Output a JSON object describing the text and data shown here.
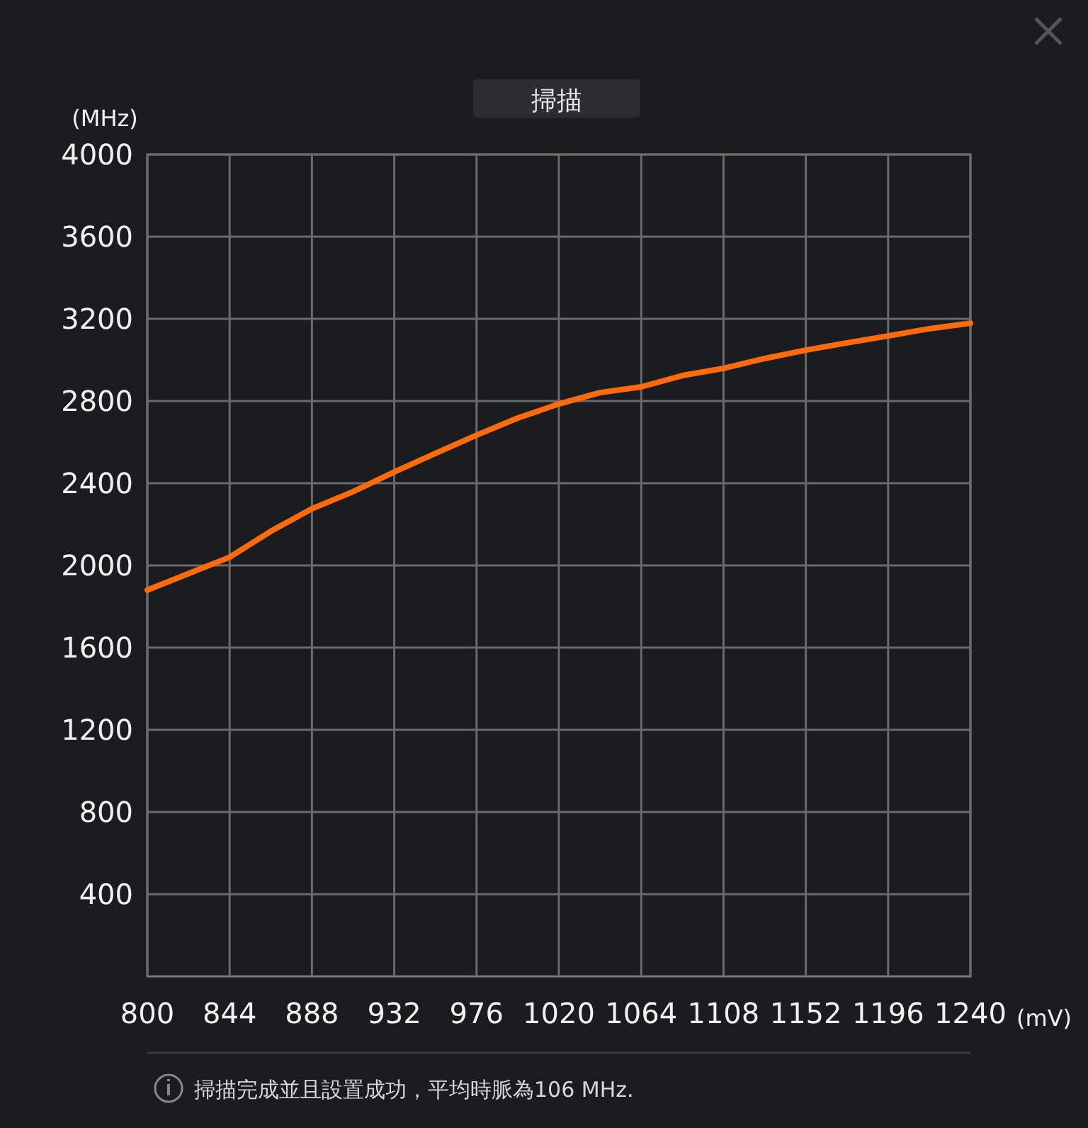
{
  "chart_data": {
    "type": "line",
    "xlabel": "(mV)",
    "ylabel": "(MHz)",
    "annotations": [
      "掃描",
      "掃描完成並且設置成功，平均時脈為106 MHz."
    ],
    "x": [
      800,
      844,
      866,
      888,
      910,
      932,
      954,
      976,
      998,
      1020,
      1042,
      1064,
      1086,
      1108,
      1130,
      1152,
      1174,
      1196,
      1218,
      1240
    ],
    "series": [
      {
        "color": "#ff6a0d",
        "values": [
          1880,
          2040,
          2166,
          2276,
          2359,
          2455,
          2545,
          2634,
          2717,
          2786,
          2841,
          2869,
          2924,
          2959,
          3007,
          3048,
          3083,
          3117,
          3152,
          3179
        ]
      }
    ],
    "xlim": [
      800,
      1240
    ],
    "xticks": [
      800,
      844,
      888,
      932,
      976,
      1020,
      1064,
      1108,
      1152,
      1196,
      1240
    ],
    "ylim": [
      0,
      4000
    ],
    "yticks": [
      400,
      800,
      1200,
      1600,
      2000,
      2400,
      2800,
      3200,
      3600,
      4000
    ],
    "grid": true,
    "marker": "none",
    "line_style": "solid"
  }
}
